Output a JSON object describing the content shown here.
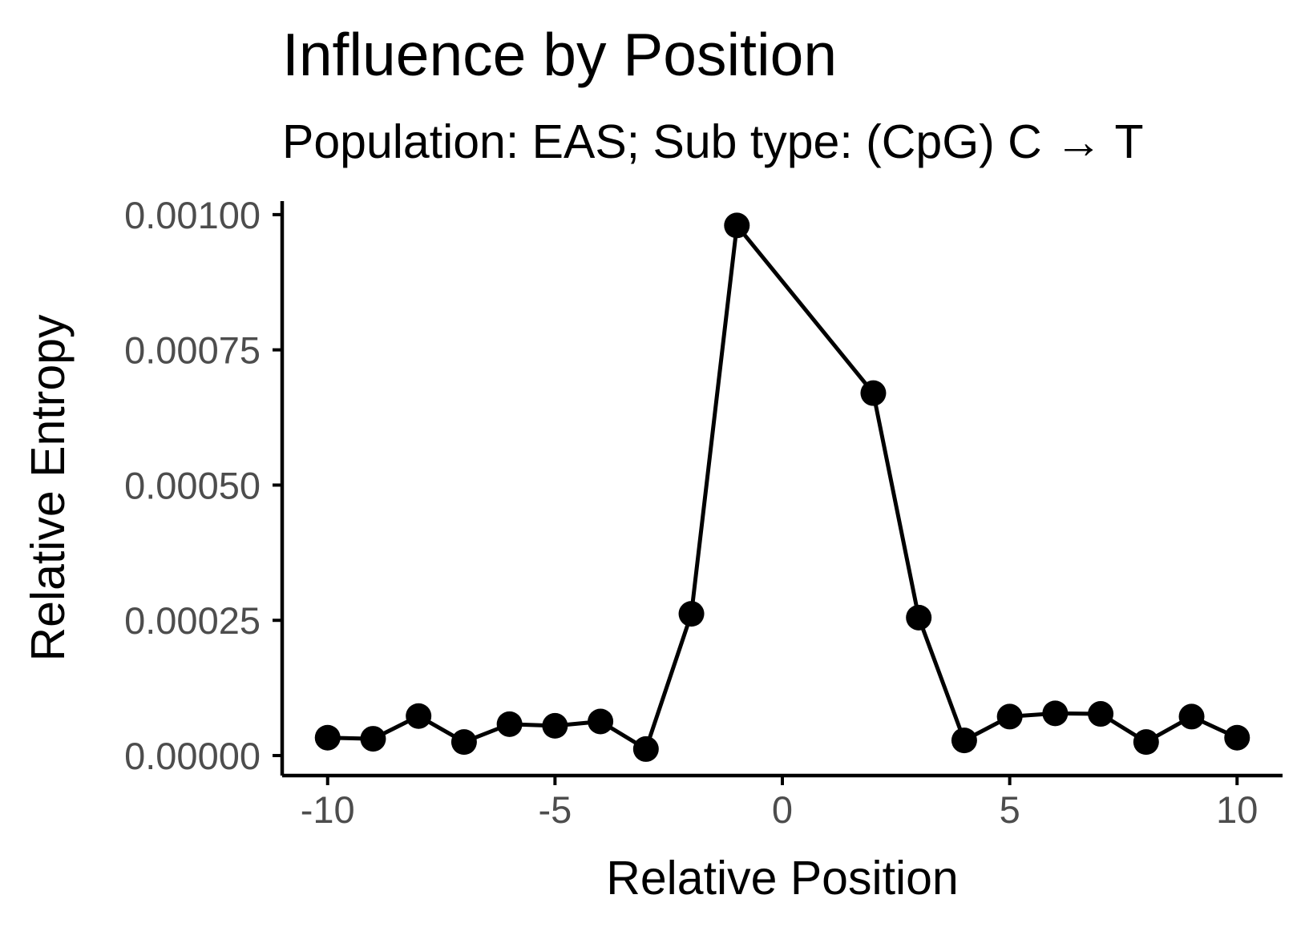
{
  "chart_data": {
    "type": "line",
    "title": "Influence by Position",
    "subtitle": "Population: EAS; Sub type: (CpG) C → T",
    "xlabel": "Relative Position",
    "ylabel": "Relative Entropy",
    "xlim": [
      -11,
      11
    ],
    "ylim": [
      -3.7e-05,
      0.001025
    ],
    "x_ticks": [
      -10,
      -5,
      0,
      5,
      10
    ],
    "x_tick_labels": [
      "-10",
      "-5",
      "0",
      "5",
      "10"
    ],
    "y_ticks": [
      0,
      0.00025,
      0.0005,
      0.00075,
      0.001
    ],
    "y_tick_labels": [
      "0.00000",
      "0.00025",
      "0.00050",
      "0.00075",
      "0.00100"
    ],
    "grid": false,
    "legend": "none",
    "color": "#000000",
    "series": [
      {
        "x": [
          -10,
          -9,
          -8,
          -7,
          -6,
          -5,
          -4,
          -3,
          -2,
          -1,
          2,
          3,
          4,
          5,
          6,
          7,
          8,
          9,
          10
        ],
        "y": [
          3.3e-05,
          3.1e-05,
          7.3e-05,
          2.5e-05,
          5.8e-05,
          5.5e-05,
          6.3e-05,
          1.2e-05,
          0.000262,
          0.00098,
          0.00067,
          0.000255,
          2.8e-05,
          7.2e-05,
          7.8e-05,
          7.7e-05,
          2.5e-05,
          7.2e-05,
          3.3e-05
        ]
      }
    ]
  }
}
